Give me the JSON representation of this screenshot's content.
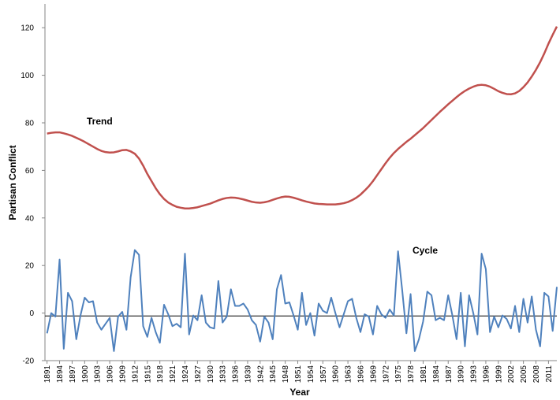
{
  "chart_data": {
    "type": "line",
    "x_label": "Year",
    "y_label": "Partisan Conflict",
    "annotations": [
      "Trend",
      "Cycle"
    ],
    "x": [
      1891,
      1892,
      1893,
      1894,
      1895,
      1896,
      1897,
      1898,
      1899,
      1900,
      1901,
      1902,
      1903,
      1904,
      1905,
      1906,
      1907,
      1908,
      1909,
      1910,
      1911,
      1912,
      1913,
      1914,
      1915,
      1916,
      1917,
      1918,
      1919,
      1920,
      1921,
      1922,
      1923,
      1924,
      1925,
      1926,
      1927,
      1928,
      1929,
      1930,
      1931,
      1932,
      1933,
      1934,
      1935,
      1936,
      1937,
      1938,
      1939,
      1940,
      1941,
      1942,
      1943,
      1944,
      1945,
      1946,
      1947,
      1948,
      1949,
      1950,
      1951,
      1952,
      1953,
      1954,
      1955,
      1956,
      1957,
      1958,
      1959,
      1960,
      1961,
      1962,
      1963,
      1964,
      1965,
      1966,
      1967,
      1968,
      1969,
      1970,
      1971,
      1972,
      1973,
      1974,
      1975,
      1976,
      1977,
      1978,
      1979,
      1980,
      1981,
      1982,
      1983,
      1984,
      1985,
      1986,
      1987,
      1988,
      1989,
      1990,
      1991,
      1992,
      1993,
      1994,
      1995,
      1996,
      1997,
      1998,
      1999,
      2000,
      2001,
      2002,
      2003,
      2004,
      2005,
      2006,
      2007,
      2008,
      2009,
      2010,
      2011,
      2012,
      2013
    ],
    "series": [
      {
        "name": "Trend",
        "color": "#c0504d",
        "values": [
          75.5,
          75.8,
          76,
          76,
          75.6,
          75.1,
          74.5,
          73.7,
          72.9,
          72,
          71,
          70,
          69,
          68.2,
          67.7,
          67.5,
          67.6,
          68,
          68.5,
          68.6,
          68,
          67,
          65,
          62,
          58.5,
          55.5,
          52.5,
          50,
          48,
          46.5,
          45.5,
          44.7,
          44.3,
          44,
          44,
          44.2,
          44.5,
          45,
          45.5,
          46,
          46.7,
          47.4,
          48,
          48.4,
          48.6,
          48.5,
          48.2,
          47.8,
          47.3,
          46.8,
          46.5,
          46.4,
          46.6,
          47,
          47.6,
          48.2,
          48.7,
          49,
          48.9,
          48.5,
          48,
          47.4,
          46.9,
          46.5,
          46.1,
          45.9,
          45.8,
          45.7,
          45.7,
          45.7,
          45.9,
          46.2,
          46.7,
          47.5,
          48.5,
          49.8,
          51.5,
          53.3,
          55.5,
          58,
          60.5,
          63,
          65.3,
          67.3,
          69,
          70.5,
          72,
          73.3,
          74.8,
          76.3,
          77.8,
          79.5,
          81.2,
          82.9,
          84.6,
          86.2,
          87.8,
          89.3,
          90.8,
          92.2,
          93.4,
          94.4,
          95.2,
          95.8,
          96,
          95.8,
          95.2,
          94.3,
          93.3,
          92.6,
          92.1,
          92,
          92.4,
          93.4,
          95,
          97,
          99.5,
          102.3,
          105.5,
          109.2,
          113.3,
          117,
          120.5
        ]
      },
      {
        "name": "Cycle",
        "color": "#4f81bd",
        "values": [
          -8.5,
          0,
          -1.5,
          22.5,
          -15,
          8.5,
          5,
          -11,
          -1,
          6.5,
          4.5,
          5,
          -4,
          -7,
          -4.5,
          -2,
          -16,
          -1.5,
          0.5,
          -7,
          15,
          26.5,
          24.5,
          -5.5,
          -10,
          -2,
          -8,
          -12.5,
          3.5,
          -0.5,
          -5.5,
          -4.5,
          -6,
          25,
          -9,
          -1,
          -3,
          7.5,
          -4,
          -6,
          -6.5,
          13.5,
          -4,
          -1.5,
          10,
          3,
          3,
          4,
          1.5,
          -3,
          -5,
          -12,
          -1.5,
          -4,
          -11,
          10,
          16,
          4,
          4.5,
          -1,
          -7,
          8.5,
          -5,
          0,
          -9.5,
          4,
          1,
          0,
          6.5,
          0,
          -6,
          -0.5,
          5,
          6,
          -2,
          -8,
          -0.5,
          -1.5,
          -9,
          3,
          -0.5,
          -2,
          1.5,
          -1,
          26,
          9.5,
          -8.5,
          8,
          -16,
          -11,
          -3.5,
          9,
          7.5,
          -3,
          -2,
          -3,
          7.5,
          -1,
          -11,
          8.5,
          -14,
          7.5,
          0,
          -9,
          25,
          18.5,
          -8,
          -1.5,
          -6,
          -1,
          -2.5,
          -6.5,
          3,
          -8,
          6,
          -4,
          7,
          -7,
          -14,
          8.5,
          7,
          -7.5,
          11
        ]
      }
    ],
    "reference_line": -1.2,
    "xlim": [
      1890.5,
      2013
    ],
    "xticks": [
      1891,
      1894,
      1897,
      1900,
      1903,
      1906,
      1909,
      1912,
      1915,
      1918,
      1921,
      1924,
      1927,
      1930,
      1933,
      1936,
      1939,
      1942,
      1945,
      1948,
      1951,
      1954,
      1957,
      1960,
      1963,
      1966,
      1969,
      1972,
      1975,
      1978,
      1981,
      1984,
      1987,
      1990,
      1993,
      1996,
      1999,
      2002,
      2005,
      2008,
      2011
    ],
    "ylim": [
      -20,
      130
    ],
    "yticks": [
      -20,
      0,
      20,
      40,
      60,
      80,
      100,
      120
    ]
  }
}
